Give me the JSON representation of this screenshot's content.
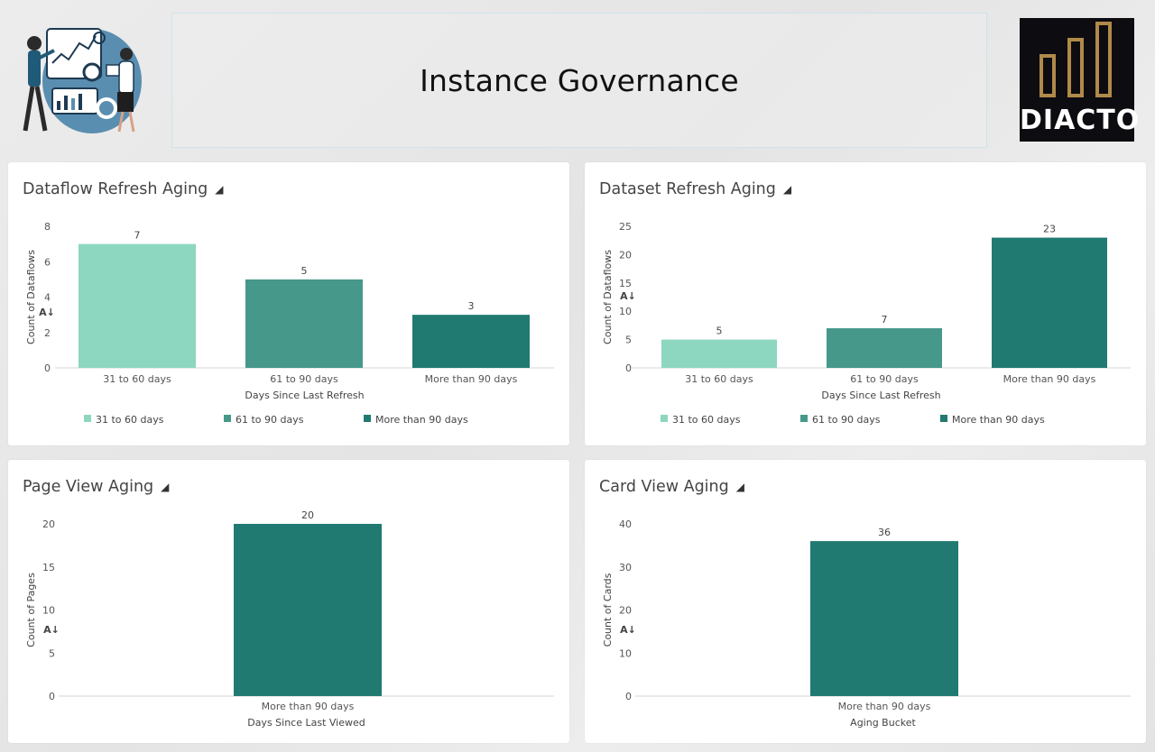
{
  "header": {
    "title": "Instance Governance",
    "logo_text": "DIACTO"
  },
  "colors": {
    "light": "#8dd6c0",
    "mid": "#46998a",
    "dark": "#217a71"
  },
  "chart_data": [
    {
      "id": "dataflow",
      "type": "bar",
      "title": "Dataflow Refresh Aging",
      "xlabel": "Days Since Last Refresh",
      "ylabel": "Count of Dataflows",
      "categories": [
        "31 to 60 days",
        "61 to 90 days",
        "More than 90 days"
      ],
      "values": [
        7,
        5,
        3
      ],
      "colors": [
        "#8dd6c0",
        "#46998a",
        "#217a71"
      ],
      "ylim": [
        0,
        8
      ],
      "yticks": [
        0,
        2,
        4,
        6,
        8
      ],
      "legend": [
        "31 to 60 days",
        "61 to 90 days",
        "More than 90 days"
      ],
      "legend_position": "bottom-left"
    },
    {
      "id": "dataset",
      "type": "bar",
      "title": "Dataset Refresh Aging",
      "xlabel": "Days Since Last Refresh",
      "ylabel": "Count of Dataflows",
      "categories": [
        "31 to 60 days",
        "61 to 90 days",
        "More than 90 days"
      ],
      "values": [
        5,
        7,
        23
      ],
      "colors": [
        "#8dd6c0",
        "#46998a",
        "#217a71"
      ],
      "ylim": [
        0,
        25
      ],
      "yticks": [
        0,
        5,
        10,
        15,
        20,
        25
      ],
      "legend": [
        "31 to 60 days",
        "61 to 90 days",
        "More than 90 days"
      ],
      "legend_position": "bottom-left"
    },
    {
      "id": "pageview",
      "type": "bar",
      "title": "Page View Aging",
      "xlabel": "Days Since Last Viewed",
      "ylabel": "Count of Pages",
      "categories": [
        "More than 90 days"
      ],
      "values": [
        20
      ],
      "colors": [
        "#217a71"
      ],
      "ylim": [
        0,
        20
      ],
      "yticks": [
        0,
        5,
        10,
        15,
        20
      ]
    },
    {
      "id": "cardview",
      "type": "bar",
      "title": "Card View Aging",
      "xlabel": "Aging Bucket",
      "ylabel": "Count of Cards",
      "categories": [
        "More than 90 days"
      ],
      "values": [
        36
      ],
      "colors": [
        "#217a71"
      ],
      "ylim": [
        0,
        40
      ],
      "yticks": [
        0,
        10,
        20,
        30,
        40
      ]
    }
  ]
}
